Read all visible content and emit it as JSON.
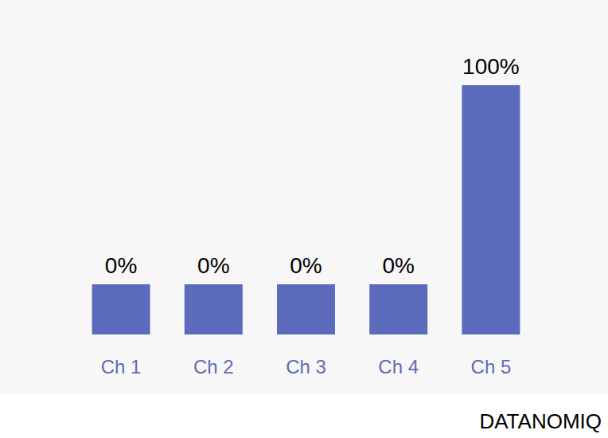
{
  "chart_data": {
    "type": "bar",
    "categories": [
      "Ch 1",
      "Ch 2",
      "Ch 3",
      "Ch 4",
      "Ch 5"
    ],
    "values": [
      0,
      0,
      0,
      0,
      100
    ],
    "value_labels": [
      "0%",
      "0%",
      "0%",
      "0%",
      "100%"
    ],
    "color": "#5b6abb",
    "ylim": [
      0,
      100
    ],
    "grid": false,
    "data_labels": true,
    "tick_labels": "x",
    "annotations": [
      "DATANOMIQ"
    ]
  }
}
